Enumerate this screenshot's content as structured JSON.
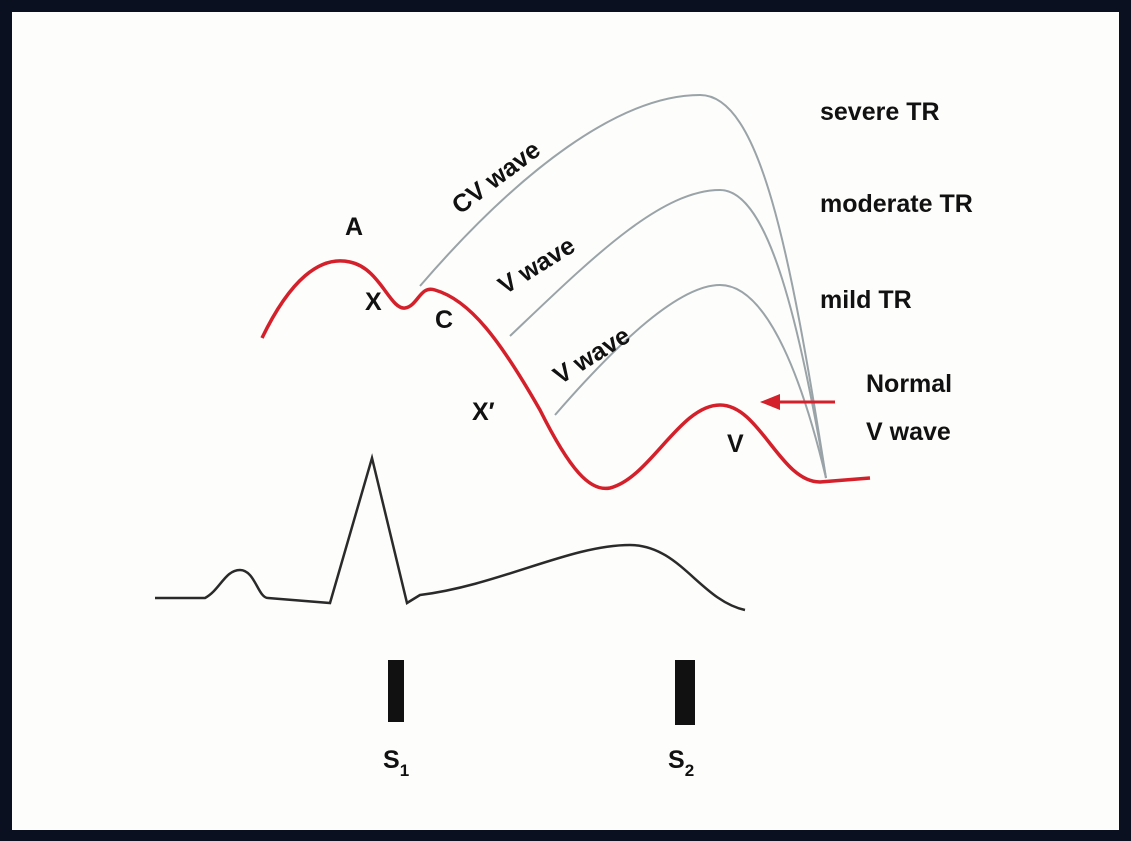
{
  "labels": {
    "a": "A",
    "x": "X",
    "c": "C",
    "x_prime": "X′",
    "v": "V"
  },
  "wave_labels": [
    "CV wave",
    "V wave",
    "V wave"
  ],
  "legend": [
    "severe TR",
    "moderate TR",
    "mild TR"
  ],
  "normal": [
    "Normal",
    "V wave"
  ],
  "sounds": [
    {
      "letter": "S",
      "sub": "1"
    },
    {
      "letter": "S",
      "sub": "2"
    }
  ]
}
